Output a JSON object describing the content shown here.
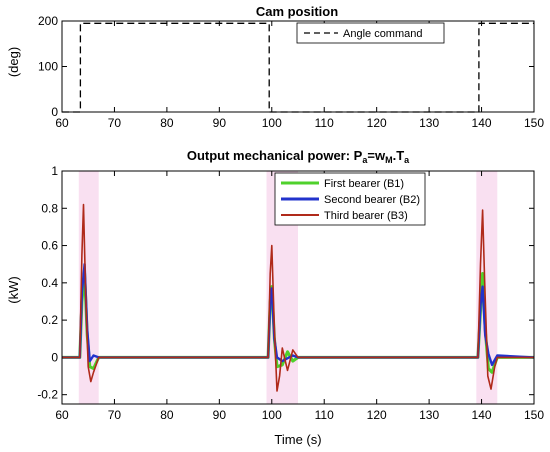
{
  "chart_data": [
    {
      "type": "line",
      "title": "Cam position",
      "xlabel": "",
      "ylabel": "(deg)",
      "xlim": [
        60,
        150
      ],
      "ylim": [
        0,
        200
      ],
      "xticks": [
        60,
        70,
        80,
        90,
        100,
        110,
        120,
        130,
        140,
        150
      ],
      "yticks": [
        0,
        100,
        200
      ],
      "grid": false,
      "legend_position": "top-right",
      "series": [
        {
          "name": "Angle command",
          "color": "#000000",
          "dash": "dashed",
          "x": [
            60,
            63.5,
            63.5,
            99.5,
            99.5,
            139.5,
            139.5,
            150
          ],
          "y": [
            0,
            0,
            195,
            195,
            0,
            0,
            195,
            195
          ]
        }
      ]
    },
    {
      "type": "line",
      "title_main": "Output mechanical power: P",
      "title_sub_a": "a",
      "title_mid": "=w",
      "title_sub_m": "M",
      "title_dot": ".T",
      "title_sub_a2": "a",
      "xlabel": "Time (s)",
      "ylabel": "(kW)",
      "xlim": [
        60,
        150
      ],
      "ylim": [
        -0.25,
        1
      ],
      "xticks": [
        60,
        70,
        80,
        90,
        100,
        110,
        120,
        130,
        140,
        150
      ],
      "yticks": [
        -0.2,
        0,
        0.2,
        0.4,
        0.6,
        0.8,
        1
      ],
      "ytick_labels": [
        "-0.2",
        "0",
        "0.2",
        "0.4",
        "0.6",
        "0.8",
        "1"
      ],
      "grid": false,
      "legend_position": "top-right",
      "shaded_bands": [
        {
          "x0": 63.2,
          "x1": 67,
          "color": "#f4c6e6"
        },
        {
          "x0": 99,
          "x1": 105,
          "color": "#f4c6e6"
        },
        {
          "x0": 139,
          "x1": 143,
          "color": "#f4c6e6"
        }
      ],
      "series": [
        {
          "name": "First bearer (B1)",
          "color": "#4fd12c",
          "x": [
            60,
            63.4,
            63.8,
            64.3,
            64.8,
            65.3,
            66,
            67,
            99.3,
            99.7,
            100,
            100.5,
            101,
            102,
            103,
            104,
            105,
            139.3,
            139.8,
            140.2,
            140.7,
            141.3,
            142,
            143,
            150
          ],
          "y": [
            0,
            0,
            0.3,
            0.45,
            0.12,
            -0.05,
            -0.06,
            0,
            0,
            0.3,
            0.38,
            0.1,
            -0.05,
            -0.04,
            0.03,
            -0.02,
            0,
            0,
            0.25,
            0.45,
            0.15,
            -0.06,
            -0.08,
            0,
            0
          ]
        },
        {
          "name": "Second bearer (B2)",
          "color": "#2233cc",
          "x": [
            60,
            63.4,
            63.8,
            64.3,
            64.8,
            65.3,
            66,
            67,
            99.3,
            99.7,
            100,
            100.5,
            101,
            102,
            104,
            105,
            139.3,
            139.8,
            140.2,
            140.7,
            141.3,
            142,
            143,
            150
          ],
          "y": [
            0,
            0,
            0.35,
            0.5,
            0.15,
            -0.02,
            0.01,
            0,
            0,
            0.3,
            0.37,
            0.1,
            0,
            -0.02,
            0.01,
            0,
            0,
            0.28,
            0.38,
            0.12,
            0.02,
            -0.04,
            0.01,
            0
          ]
        },
        {
          "name": "Third bearer (B3)",
          "color": "#b02a1a",
          "x": [
            60,
            63.4,
            63.8,
            64.1,
            64.5,
            65,
            65.5,
            66,
            67,
            99.3,
            99.7,
            100,
            100.5,
            101,
            101.5,
            102,
            103,
            104,
            105,
            139.3,
            139.8,
            140.2,
            140.6,
            141.2,
            141.8,
            142.5,
            143,
            150
          ],
          "y": [
            0,
            0,
            0.55,
            0.82,
            0.35,
            -0.05,
            -0.13,
            -0.08,
            0,
            0,
            0.45,
            0.6,
            0.15,
            -0.18,
            -0.1,
            0.05,
            -0.07,
            0.04,
            0,
            0,
            0.5,
            0.79,
            0.4,
            -0.1,
            -0.17,
            -0.05,
            0,
            0
          ]
        }
      ]
    }
  ]
}
